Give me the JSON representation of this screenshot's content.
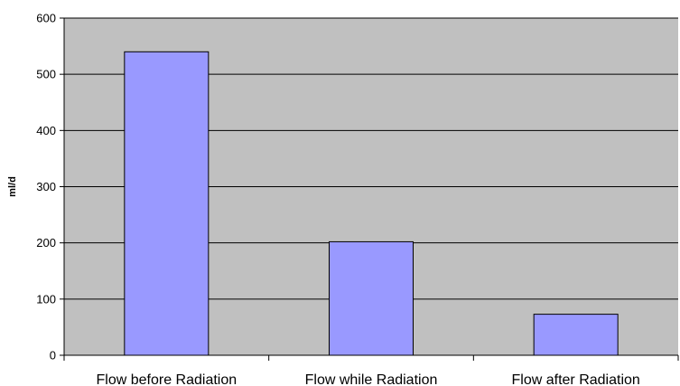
{
  "chart_data": {
    "type": "bar",
    "categories": [
      "Flow before Radiation",
      "Flow while Radiation",
      "Flow after Radiation"
    ],
    "values": [
      540,
      202,
      73
    ],
    "title": "",
    "xlabel": "",
    "ylabel": "ml/d",
    "ylim": [
      0,
      600
    ],
    "yticks": [
      0,
      100,
      200,
      300,
      400,
      500,
      600
    ],
    "grid": true,
    "legend": "none"
  },
  "colors": {
    "plot_background": "#c0c0c0",
    "bar_fill": "#9999ff",
    "bar_stroke": "#000000",
    "gridline": "#000000",
    "axis": "#000000"
  }
}
